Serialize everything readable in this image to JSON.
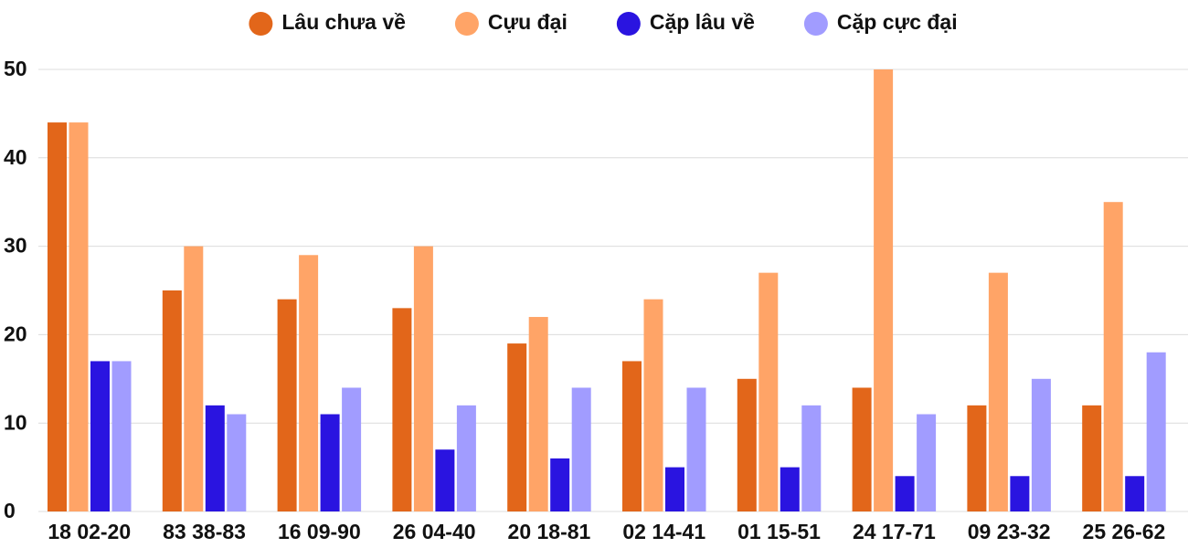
{
  "chart_data": {
    "type": "bar",
    "categories": [
      "18 02-20",
      "83 38-83",
      "16 09-90",
      "26 04-40",
      "20 18-81",
      "02 14-41",
      "01 15-51",
      "24 17-71",
      "09 23-32",
      "25 26-62"
    ],
    "series": [
      {
        "name": "Lâu chưa về",
        "color": "#e2661a",
        "values": [
          44,
          25,
          24,
          23,
          19,
          17,
          15,
          14,
          12,
          12
        ]
      },
      {
        "name": "Cựu đại",
        "color": "#ffa467",
        "values": [
          44,
          30,
          29,
          30,
          22,
          24,
          27,
          50,
          27,
          35
        ]
      },
      {
        "name": "Cặp lâu về",
        "color": "#2a14e0",
        "values": [
          17,
          12,
          11,
          7,
          6,
          5,
          5,
          4,
          4,
          4
        ]
      },
      {
        "name": "Cặp cực đại",
        "color": "#a19cff",
        "values": [
          17,
          11,
          14,
          12,
          14,
          14,
          12,
          11,
          15,
          18
        ]
      }
    ],
    "ylim": [
      0,
      50
    ],
    "yticks": [
      0,
      10,
      20,
      30,
      40,
      50
    ],
    "grid": true,
    "legend": "top"
  }
}
